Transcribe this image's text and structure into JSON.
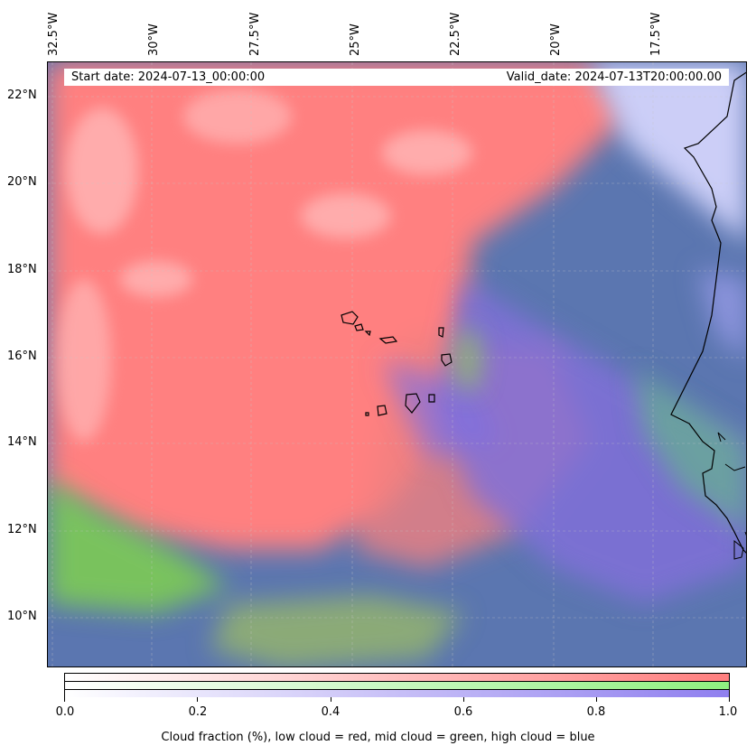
{
  "map": {
    "start_date": "Start date: 2024-07-13_00:00:00",
    "valid_date": "Valid_date: 2024-07-13T20:00:00.00",
    "lon_labels": [
      "32.5°W",
      "30°W",
      "27.5°W",
      "25°W",
      "22.5°W",
      "20°W",
      "17.5°W"
    ],
    "lat_labels": [
      "22°N",
      "20°N",
      "18°N",
      "16°N",
      "14°N",
      "12°N",
      "10°N"
    ],
    "colors": {
      "low_cloud": "#ff7f7f",
      "mid_cloud": "#7fdf4f",
      "high_cloud": "#7f6fdf",
      "clear_sea": "#4f6fa8",
      "coastline": "#000000"
    }
  },
  "colorbar": {
    "ticks": [
      "0.0",
      "0.2",
      "0.4",
      "0.6",
      "0.8",
      "1.0"
    ],
    "caption": "Cloud fraction (%), low cloud = red, mid cloud = green, high cloud = blue",
    "strip_colors": [
      "#ff7f7f",
      "#8ff07f",
      "#8f7fef"
    ]
  }
}
